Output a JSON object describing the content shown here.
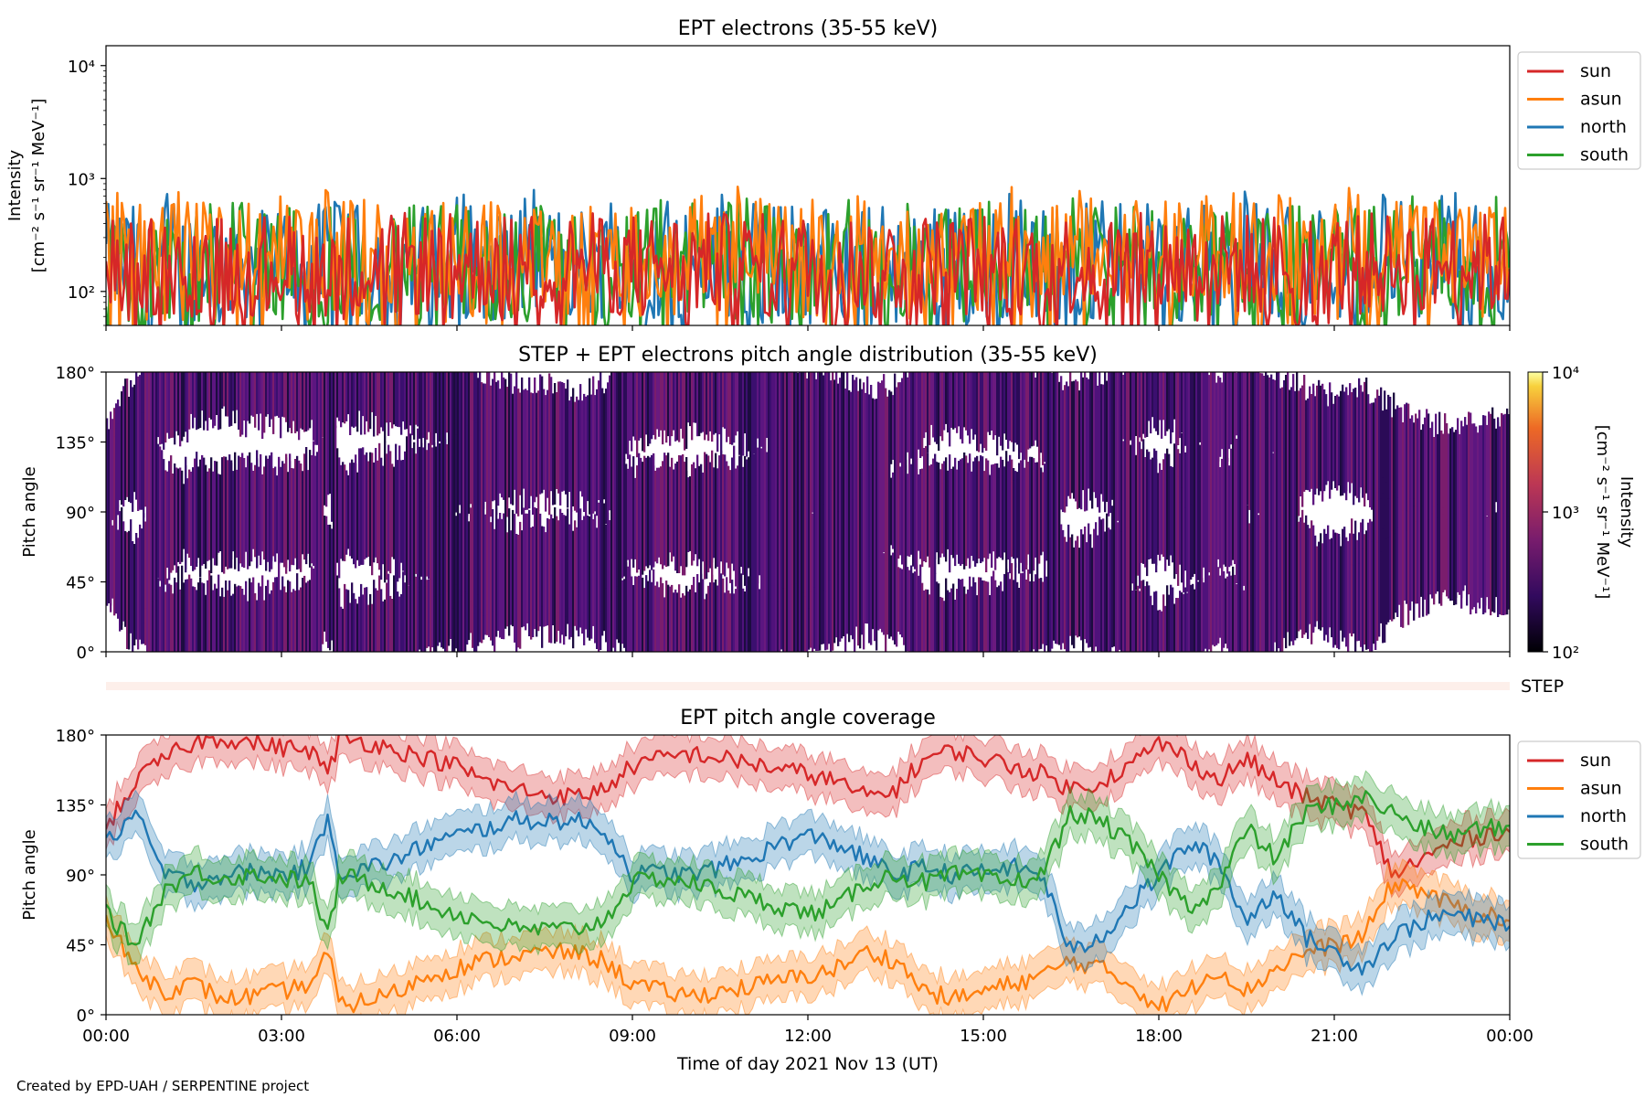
{
  "chart_data": [
    {
      "type": "line",
      "title": "EPT electrons (35-55 keV)",
      "ylabel": "Intensity",
      "ylabel_units": "[cm⁻² s⁻¹ sr⁻¹ MeV⁻¹]",
      "yscale": "log",
      "ylim": [
        50,
        15000
      ],
      "yticks": [
        "10⁴",
        "10³",
        "10²"
      ],
      "xlim": [
        "00:00",
        "24:00"
      ],
      "legend_position": "outside-right",
      "series": [
        {
          "name": "sun",
          "color": "#d62728",
          "typical_range": [
            60,
            500
          ]
        },
        {
          "name": "asun",
          "color": "#ff7f0e",
          "typical_range": [
            80,
            650
          ],
          "peak": 850
        },
        {
          "name": "north",
          "color": "#1f77b4",
          "typical_range": [
            55,
            600
          ],
          "peak": 800
        },
        {
          "name": "south",
          "color": "#2ca02c",
          "typical_range": [
            55,
            600
          ],
          "peak": 700
        }
      ]
    },
    {
      "type": "heatmap",
      "title": "STEP + EPT electrons pitch angle distribution (35-55 keV)",
      "ylabel": "Pitch angle",
      "ylim": [
        0,
        180
      ],
      "yticks": [
        "0°",
        "45°",
        "90°",
        "135°",
        "180°"
      ],
      "colorbar": {
        "label": "Intensity",
        "units": "[cm⁻² s⁻¹ sr⁻¹ MeV⁻¹]",
        "scale": "log",
        "range": [
          100,
          10000
        ],
        "ticks": [
          "10²",
          "10³",
          "10⁴"
        ],
        "colormap": "inferno"
      },
      "step_label": "STEP"
    },
    {
      "type": "line",
      "title": "EPT pitch angle coverage",
      "ylabel": "Pitch angle",
      "ylim": [
        0,
        180
      ],
      "yticks": [
        "0°",
        "45°",
        "90°",
        "135°",
        "180°"
      ],
      "xlabel": "Time of day 2021 Nov 13 (UT)",
      "xticks": [
        "00:00",
        "03:00",
        "06:00",
        "09:00",
        "12:00",
        "15:00",
        "18:00",
        "21:00",
        "00:00"
      ],
      "legend_position": "outside-right",
      "series": [
        {
          "name": "sun",
          "color": "#d62728",
          "points": [
            [
              0,
              120
            ],
            [
              0.5,
              150
            ],
            [
              1,
              165
            ],
            [
              1.5,
              175
            ],
            [
              2,
              178
            ],
            [
              2.5,
              175
            ],
            [
              3,
              172
            ],
            [
              3.5,
              170
            ],
            [
              3.8,
              155
            ],
            [
              4,
              178
            ],
            [
              4.5,
              175
            ],
            [
              5,
              170
            ],
            [
              5.5,
              165
            ],
            [
              6,
              160
            ],
            [
              6.5,
              150
            ],
            [
              7,
              145
            ],
            [
              7.5,
              142
            ],
            [
              8,
              140
            ],
            [
              8.5,
              145
            ],
            [
              9,
              160
            ],
            [
              9.5,
              165
            ],
            [
              10,
              168
            ],
            [
              10.5,
              165
            ],
            [
              11,
              162
            ],
            [
              11.5,
              158
            ],
            [
              12,
              155
            ],
            [
              12.5,
              150
            ],
            [
              13,
              140
            ],
            [
              13.5,
              145
            ],
            [
              14,
              165
            ],
            [
              14.5,
              170
            ],
            [
              15,
              165
            ],
            [
              15.5,
              160
            ],
            [
              16,
              155
            ],
            [
              16.5,
              145
            ],
            [
              17,
              150
            ],
            [
              17.5,
              160
            ],
            [
              18,
              175
            ],
            [
              18.5,
              165
            ],
            [
              19,
              150
            ],
            [
              19.5,
              165
            ],
            [
              20,
              150
            ],
            [
              20.5,
              140
            ],
            [
              21,
              135
            ],
            [
              21.5,
              130
            ],
            [
              22,
              90
            ],
            [
              22.5,
              100
            ],
            [
              23,
              110
            ],
            [
              23.5,
              115
            ],
            [
              24,
              120
            ]
          ]
        },
        {
          "name": "asun",
          "color": "#ff7f0e",
          "points": [
            [
              0,
              60
            ],
            [
              0.5,
              30
            ],
            [
              1,
              15
            ],
            [
              1.5,
              20
            ],
            [
              2,
              10
            ],
            [
              2.5,
              12
            ],
            [
              3,
              15
            ],
            [
              3.5,
              20
            ],
            [
              3.8,
              40
            ],
            [
              4,
              5
            ],
            [
              4.5,
              10
            ],
            [
              5,
              15
            ],
            [
              5.5,
              25
            ],
            [
              6,
              30
            ],
            [
              6.5,
              35
            ],
            [
              7,
              38
            ],
            [
              7.5,
              40
            ],
            [
              8,
              40
            ],
            [
              8.5,
              35
            ],
            [
              9,
              20
            ],
            [
              9.5,
              15
            ],
            [
              10,
              12
            ],
            [
              10.5,
              15
            ],
            [
              11,
              18
            ],
            [
              11.5,
              22
            ],
            [
              12,
              25
            ],
            [
              12.5,
              30
            ],
            [
              13,
              40
            ],
            [
              13.5,
              35
            ],
            [
              14,
              15
            ],
            [
              14.5,
              10
            ],
            [
              15,
              15
            ],
            [
              15.5,
              20
            ],
            [
              16,
              25
            ],
            [
              16.5,
              35
            ],
            [
              17,
              30
            ],
            [
              17.5,
              20
            ],
            [
              18,
              5
            ],
            [
              18.5,
              15
            ],
            [
              19,
              30
            ],
            [
              19.5,
              15
            ],
            [
              20,
              30
            ],
            [
              20.5,
              40
            ],
            [
              21,
              45
            ],
            [
              21.5,
              50
            ],
            [
              22,
              85
            ],
            [
              22.5,
              80
            ],
            [
              23,
              70
            ],
            [
              23.5,
              65
            ],
            [
              24,
              60
            ]
          ]
        },
        {
          "name": "north",
          "color": "#1f77b4",
          "points": [
            [
              0,
              110
            ],
            [
              0.5,
              130
            ],
            [
              1,
              90
            ],
            [
              1.5,
              85
            ],
            [
              2,
              90
            ],
            [
              2.5,
              92
            ],
            [
              3,
              90
            ],
            [
              3.5,
              95
            ],
            [
              3.8,
              130
            ],
            [
              4,
              90
            ],
            [
              4.5,
              95
            ],
            [
              5,
              100
            ],
            [
              5.5,
              110
            ],
            [
              6,
              115
            ],
            [
              6.5,
              120
            ],
            [
              7,
              125
            ],
            [
              7.5,
              125
            ],
            [
              8,
              125
            ],
            [
              8.5,
              120
            ],
            [
              9,
              90
            ],
            [
              9.5,
              92
            ],
            [
              10,
              90
            ],
            [
              10.5,
              95
            ],
            [
              11,
              100
            ],
            [
              11.5,
              110
            ],
            [
              12,
              115
            ],
            [
              12.5,
              110
            ],
            [
              13,
              100
            ],
            [
              13.5,
              90
            ],
            [
              14,
              95
            ],
            [
              14.5,
              90
            ],
            [
              15,
              92
            ],
            [
              15.5,
              95
            ],
            [
              16,
              90
            ],
            [
              16.5,
              40
            ],
            [
              17,
              50
            ],
            [
              17.5,
              70
            ],
            [
              18,
              90
            ],
            [
              18.5,
              110
            ],
            [
              19,
              100
            ],
            [
              19.5,
              60
            ],
            [
              20,
              80
            ],
            [
              20.5,
              50
            ],
            [
              21,
              40
            ],
            [
              21.5,
              30
            ],
            [
              22,
              50
            ],
            [
              22.5,
              60
            ],
            [
              23,
              65
            ],
            [
              23.5,
              60
            ],
            [
              24,
              60
            ]
          ]
        },
        {
          "name": "south",
          "color": "#2ca02c",
          "points": [
            [
              0,
              65
            ],
            [
              0.5,
              45
            ],
            [
              1,
              80
            ],
            [
              1.5,
              92
            ],
            [
              2,
              88
            ],
            [
              2.5,
              90
            ],
            [
              3,
              88
            ],
            [
              3.5,
              85
            ],
            [
              3.8,
              50
            ],
            [
              4,
              90
            ],
            [
              4.5,
              85
            ],
            [
              5,
              80
            ],
            [
              5.5,
              70
            ],
            [
              6,
              65
            ],
            [
              6.5,
              60
            ],
            [
              7,
              55
            ],
            [
              7.5,
              55
            ],
            [
              8,
              55
            ],
            [
              8.5,
              60
            ],
            [
              9,
              85
            ],
            [
              9.5,
              88
            ],
            [
              10,
              85
            ],
            [
              10.5,
              80
            ],
            [
              11,
              75
            ],
            [
              11.5,
              70
            ],
            [
              12,
              65
            ],
            [
              12.5,
              70
            ],
            [
              13,
              85
            ],
            [
              13.5,
              90
            ],
            [
              14,
              85
            ],
            [
              14.5,
              90
            ],
            [
              15,
              88
            ],
            [
              15.5,
              85
            ],
            [
              16,
              90
            ],
            [
              16.5,
              130
            ],
            [
              17,
              125
            ],
            [
              17.5,
              110
            ],
            [
              18,
              90
            ],
            [
              18.5,
              70
            ],
            [
              19,
              80
            ],
            [
              19.5,
              120
            ],
            [
              20,
              100
            ],
            [
              20.5,
              130
            ],
            [
              21,
              135
            ],
            [
              21.5,
              140
            ],
            [
              22,
              130
            ],
            [
              22.5,
              120
            ],
            [
              23,
              115
            ],
            [
              23.5,
              120
            ],
            [
              24,
              120
            ]
          ]
        }
      ]
    }
  ],
  "footer": {
    "credit": "Created by EPD-UAH / SERPENTINE project"
  }
}
